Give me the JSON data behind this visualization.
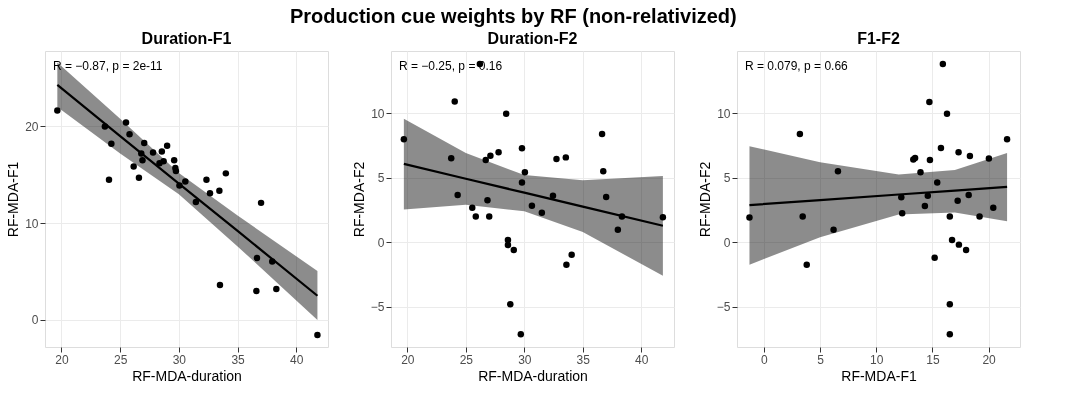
{
  "chart_data": [
    {
      "type": "other",
      "title": "Production cue weights by RF (non-relativized)"
    },
    {
      "type": "scatter",
      "title": "Duration-F1",
      "xlabel": "RF-MDA-duration",
      "ylabel": "RF-MDA-F1",
      "xlim": [
        18.6,
        42.7
      ],
      "ylim": [
        -2.8,
        27.8
      ],
      "xticks": [
        20,
        25,
        30,
        35,
        40
      ],
      "yticks": [
        0,
        10,
        20
      ],
      "grid": true,
      "line_style": "solid",
      "annotations": [
        "R = −0.87, p = 2e-11"
      ],
      "series": [
        {
          "type": "scatter",
          "marker": "circle",
          "color": "#000000",
          "x": [
            19.65,
            23.7,
            25.5,
            24.25,
            25.8,
            24.05,
            26.15,
            26.6,
            26.8,
            27.05,
            26.9,
            27.8,
            28.55,
            28.35,
            28.7,
            29.0,
            29.6,
            29.7,
            29.75,
            30.05,
            30.55,
            31.45,
            32.35,
            32.65,
            33.45,
            34.0,
            33.5,
            37.0,
            36.65,
            36.6,
            37.95,
            38.3,
            41.8
          ],
          "values": [
            21.65,
            20.0,
            20.4,
            18.2,
            19.2,
            14.5,
            15.85,
            14.7,
            17.2,
            18.3,
            16.5,
            17.3,
            17.4,
            16.2,
            16.4,
            18.0,
            16.5,
            15.7,
            15.4,
            13.9,
            14.3,
            12.2,
            14.5,
            13.1,
            13.35,
            15.15,
            3.6,
            12.1,
            6.4,
            3.0,
            6.05,
            3.2,
            -1.55
          ]
        },
        {
          "type": "line",
          "marker": "none",
          "color": "#000000",
          "x": [
            19.65,
            25,
            30,
            35,
            41.8
          ],
          "values": [
            24.3,
            19.0,
            14.1,
            9.2,
            2.5
          ],
          "lower": [
            22.0,
            17.2,
            13.0,
            7.6,
            0.0
          ],
          "upper": [
            26.6,
            20.8,
            15.2,
            10.8,
            5.05
          ]
        }
      ]
    },
    {
      "type": "scatter",
      "title": "Duration-F2",
      "xlabel": "RF-MDA-duration",
      "ylabel": "RF-MDA-F2",
      "xlim": [
        18.6,
        42.8
      ],
      "ylim": [
        -8.1,
        14.8
      ],
      "xticks": [
        20,
        25,
        30,
        35,
        40
      ],
      "yticks": [
        -5,
        0,
        5,
        10
      ],
      "grid": true,
      "line_style": "solid",
      "annotations": [
        "R = −0.25, p = 0.16"
      ],
      "series": [
        {
          "type": "scatter",
          "marker": "circle",
          "color": "#000000",
          "x": [
            19.7,
            26.2,
            24.05,
            28.45,
            23.75,
            24.3,
            25.55,
            25.85,
            26.7,
            27.1,
            26.85,
            27.0,
            27.8,
            29.8,
            30.05,
            29.8,
            30.65,
            31.5,
            32.45,
            32.75,
            33.55,
            28.6,
            28.6,
            29.1,
            33.6,
            34.05,
            28.8,
            29.7,
            36.65,
            36.75,
            37.0,
            38.0,
            38.35,
            41.85
          ],
          "values": [
            7.98,
            13.8,
            10.9,
            9.95,
            6.5,
            3.66,
            2.67,
            1.99,
            6.36,
            6.7,
            3.25,
            1.99,
            6.96,
            7.28,
            5.42,
            4.63,
            2.83,
            2.28,
            3.61,
            6.44,
            6.57,
            0.18,
            -0.21,
            -0.6,
            -1.73,
            -0.97,
            -4.79,
            -7.12,
            8.38,
            5.5,
            3.51,
            0.97,
            1.99,
            1.94
          ]
        },
        {
          "type": "line",
          "marker": "none",
          "color": "#000000",
          "x": [
            19.7,
            25,
            30,
            35,
            41.85
          ],
          "values": [
            6.07,
            4.92,
            3.84,
            2.76,
            1.28
          ],
          "lower": [
            2.54,
            2.9,
            2.4,
            0.8,
            -2.59
          ],
          "upper": [
            9.55,
            6.9,
            5.2,
            4.8,
            5.13
          ]
        }
      ]
    },
    {
      "type": "scatter",
      "title": "F1-F2",
      "xlabel": "RF-MDA-F1",
      "ylabel": "RF-MDA-F2",
      "xlim": [
        -2.4,
        22.8
      ],
      "ylim": [
        -8.1,
        14.8
      ],
      "xticks": [
        0,
        5,
        10,
        15,
        20
      ],
      "yticks": [
        -5,
        0,
        5,
        10
      ],
      "grid": true,
      "line_style": "solid",
      "annotations": [
        "R = 0.079, p = 0.66"
      ],
      "series": [
        {
          "type": "scatter",
          "marker": "circle",
          "color": "#000000",
          "x": [
            -1.29,
            3.2,
            3.45,
            3.81,
            6.2,
            6.59,
            12.23,
            12.31,
            13.3,
            13.46,
            13.94,
            14.33,
            14.59,
            14.73,
            14.78,
            15.2,
            15.43,
            15.76,
            15.93,
            16.3,
            16.55,
            16.55,
            16.55,
            16.75,
            17.36,
            17.25,
            17.33,
            18.23,
            18.34,
            18.0,
            19.2,
            20.03,
            20.42,
            21.65
          ],
          "values": [
            1.91,
            8.38,
            1.99,
            -1.73,
            0.97,
            5.5,
            3.48,
            2.25,
            6.41,
            6.52,
            5.42,
            2.8,
            3.61,
            10.86,
            6.36,
            -1.2,
            4.63,
            7.3,
            13.8,
            9.95,
            1.99,
            -4.79,
            -7.12,
            0.18,
            -0.18,
            3.22,
            6.96,
            3.66,
            6.67,
            -0.6,
            1.99,
            6.49,
            2.67,
            7.98
          ]
        },
        {
          "type": "line",
          "marker": "none",
          "color": "#000000",
          "x": [
            -1.29,
            5,
            12,
            17,
            21.65
          ],
          "values": [
            2.88,
            3.26,
            3.7,
            4.0,
            4.29
          ],
          "lower": [
            -1.73,
            0.4,
            2.15,
            2.3,
            1.62
          ],
          "upper": [
            7.43,
            6.2,
            5.25,
            5.6,
            6.91
          ]
        }
      ]
    }
  ]
}
